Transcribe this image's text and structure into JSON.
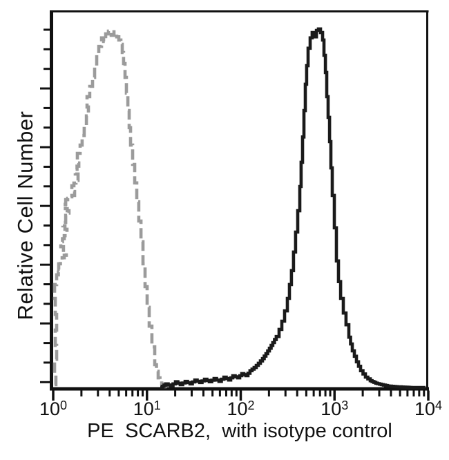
{
  "chart_data": {
    "type": "line",
    "subtype": "flow-cytometry-histogram",
    "title": "",
    "xlabel": "PE  SCARB2,  with isotype control",
    "ylabel": "Relative Cell Number",
    "background_color": "#ffffff",
    "axis_color": "#111111",
    "grid": false,
    "legend": "none",
    "x_axis": {
      "scale": "log10",
      "min_exponent": 0,
      "max_exponent": 4,
      "tick_labels": [
        {
          "base": "10",
          "exp": "0"
        },
        {
          "base": "10",
          "exp": "1"
        },
        {
          "base": "10",
          "exp": "2"
        },
        {
          "base": "10",
          "exp": "3"
        },
        {
          "base": "10",
          "exp": "4"
        }
      ]
    },
    "y_axis": {
      "label": "Relative Cell Number",
      "numeric_labels": false,
      "range_relative": [
        0,
        100
      ]
    },
    "series": [
      {
        "name": "isotype control",
        "color": "#9b9b9b",
        "line_style": "dashed",
        "peak_x_log10": 0.6,
        "points": [
          [
            0.015,
            0.8
          ],
          [
            0.029,
            4.1
          ],
          [
            0.015,
            7.9
          ],
          [
            0.037,
            11.8
          ],
          [
            0.022,
            16.1
          ],
          [
            0.037,
            20.5
          ],
          [
            0.022,
            25
          ],
          [
            0.015,
            28.9
          ],
          [
            0.037,
            31.6
          ],
          [
            0.074,
            33.1
          ],
          [
            0.059,
            34.7
          ],
          [
            0.096,
            36.4
          ],
          [
            0.14,
            37.8
          ],
          [
            0.11,
            39.5
          ],
          [
            0.081,
            40.9
          ],
          [
            0.118,
            42.6
          ],
          [
            0.147,
            44.4
          ],
          [
            0.103,
            46.3
          ],
          [
            0.133,
            48.3
          ],
          [
            0.169,
            49.6
          ],
          [
            0.11,
            51.4
          ],
          [
            0.133,
            52.7
          ],
          [
            0.199,
            53.9
          ],
          [
            0.228,
            55
          ],
          [
            0.199,
            56.6
          ],
          [
            0.243,
            58.1
          ],
          [
            0.265,
            59.9
          ],
          [
            0.236,
            61.2
          ],
          [
            0.273,
            63
          ],
          [
            0.258,
            65.7
          ],
          [
            0.287,
            68
          ],
          [
            0.309,
            70.7
          ],
          [
            0.331,
            73.4
          ],
          [
            0.354,
            76.2
          ],
          [
            0.376,
            78.7
          ],
          [
            0.361,
            81.6
          ],
          [
            0.39,
            84.5
          ],
          [
            0.42,
            87
          ],
          [
            0.442,
            89.9
          ],
          [
            0.464,
            92.8
          ],
          [
            0.486,
            95.7
          ],
          [
            0.516,
            98.1
          ],
          [
            0.538,
            97.1
          ],
          [
            0.56,
            99.2
          ],
          [
            0.589,
            100
          ],
          [
            0.619,
            98.8
          ],
          [
            0.648,
            99.8
          ],
          [
            0.678,
            98.4
          ],
          [
            0.7,
            97.5
          ],
          [
            0.722,
            96.3
          ],
          [
            0.737,
            94
          ],
          [
            0.751,
            90.9
          ],
          [
            0.766,
            87
          ],
          [
            0.781,
            82.6
          ],
          [
            0.796,
            77.7
          ],
          [
            0.81,
            72.9
          ],
          [
            0.825,
            68
          ],
          [
            0.847,
            62.6
          ],
          [
            0.869,
            57.4
          ],
          [
            0.891,
            52.1
          ],
          [
            0.913,
            46.7
          ],
          [
            0.936,
            40.9
          ],
          [
            0.958,
            34.7
          ],
          [
            0.98,
            28.3
          ],
          [
            1.002,
            22.5
          ],
          [
            1.024,
            17.2
          ],
          [
            1.053,
            11.4
          ],
          [
            1.083,
            6.4
          ],
          [
            1.12,
            2.7
          ],
          [
            1.157,
            1
          ],
          [
            1.201,
            0.2
          ],
          [
            1.245,
            0
          ]
        ]
      },
      {
        "name": "PE SCARB2",
        "color": "#1a1a1a",
        "line_style": "solid",
        "peak_x_log10": 2.82,
        "points": [
          [
            1.142,
            0
          ],
          [
            1.201,
            1
          ],
          [
            1.252,
            0.4
          ],
          [
            1.304,
            1.6
          ],
          [
            1.355,
            0.8
          ],
          [
            1.407,
            1.7
          ],
          [
            1.459,
            1
          ],
          [
            1.51,
            2.1
          ],
          [
            1.562,
            1.4
          ],
          [
            1.613,
            2.3
          ],
          [
            1.665,
            1.6
          ],
          [
            1.716,
            2.5
          ],
          [
            1.768,
            1.7
          ],
          [
            1.82,
            2.9
          ],
          [
            1.871,
            2.1
          ],
          [
            1.915,
            3.3
          ],
          [
            1.967,
            2.7
          ],
          [
            2.011,
            3.9
          ],
          [
            2.055,
            3.3
          ],
          [
            2.099,
            4.7
          ],
          [
            2.143,
            5.6
          ],
          [
            2.188,
            6.8
          ],
          [
            2.232,
            8.1
          ],
          [
            2.269,
            9.5
          ],
          [
            2.306,
            11
          ],
          [
            2.342,
            12.6
          ],
          [
            2.379,
            14.3
          ],
          [
            2.409,
            16.3
          ],
          [
            2.438,
            18.6
          ],
          [
            2.468,
            21.5
          ],
          [
            2.497,
            25
          ],
          [
            2.519,
            28.9
          ],
          [
            2.541,
            32.8
          ],
          [
            2.563,
            38
          ],
          [
            2.585,
            43.6
          ],
          [
            2.608,
            49.6
          ],
          [
            2.63,
            56.4
          ],
          [
            2.644,
            63.2
          ],
          [
            2.659,
            70.3
          ],
          [
            2.674,
            77.7
          ],
          [
            2.689,
            85.1
          ],
          [
            2.703,
            90.3
          ],
          [
            2.718,
            95.2
          ],
          [
            2.74,
            98.1
          ],
          [
            2.762,
            99.6
          ],
          [
            2.784,
            98.4
          ],
          [
            2.807,
            100.2
          ],
          [
            2.829,
            100.6
          ],
          [
            2.851,
            99.6
          ],
          [
            2.873,
            97.5
          ],
          [
            2.888,
            93.2
          ],
          [
            2.903,
            88.4
          ],
          [
            2.917,
            81.6
          ],
          [
            2.932,
            75.8
          ],
          [
            2.947,
            69
          ],
          [
            2.961,
            61.6
          ],
          [
            2.976,
            53.9
          ],
          [
            2.998,
            44.8
          ],
          [
            3.02,
            35.5
          ],
          [
            3.042,
            29.7
          ],
          [
            3.065,
            25
          ],
          [
            3.094,
            20.9
          ],
          [
            3.123,
            17.6
          ],
          [
            3.153,
            14.1
          ],
          [
            3.19,
            10.3
          ],
          [
            3.234,
            7.2
          ],
          [
            3.278,
            4.7
          ],
          [
            3.33,
            2.9
          ],
          [
            3.381,
            1.9
          ],
          [
            3.44,
            1.2
          ],
          [
            3.499,
            0.8
          ],
          [
            3.566,
            0.4
          ],
          [
            3.669,
            0.2
          ],
          [
            3.816,
            0
          ],
          [
            3.971,
            0
          ]
        ]
      }
    ]
  }
}
